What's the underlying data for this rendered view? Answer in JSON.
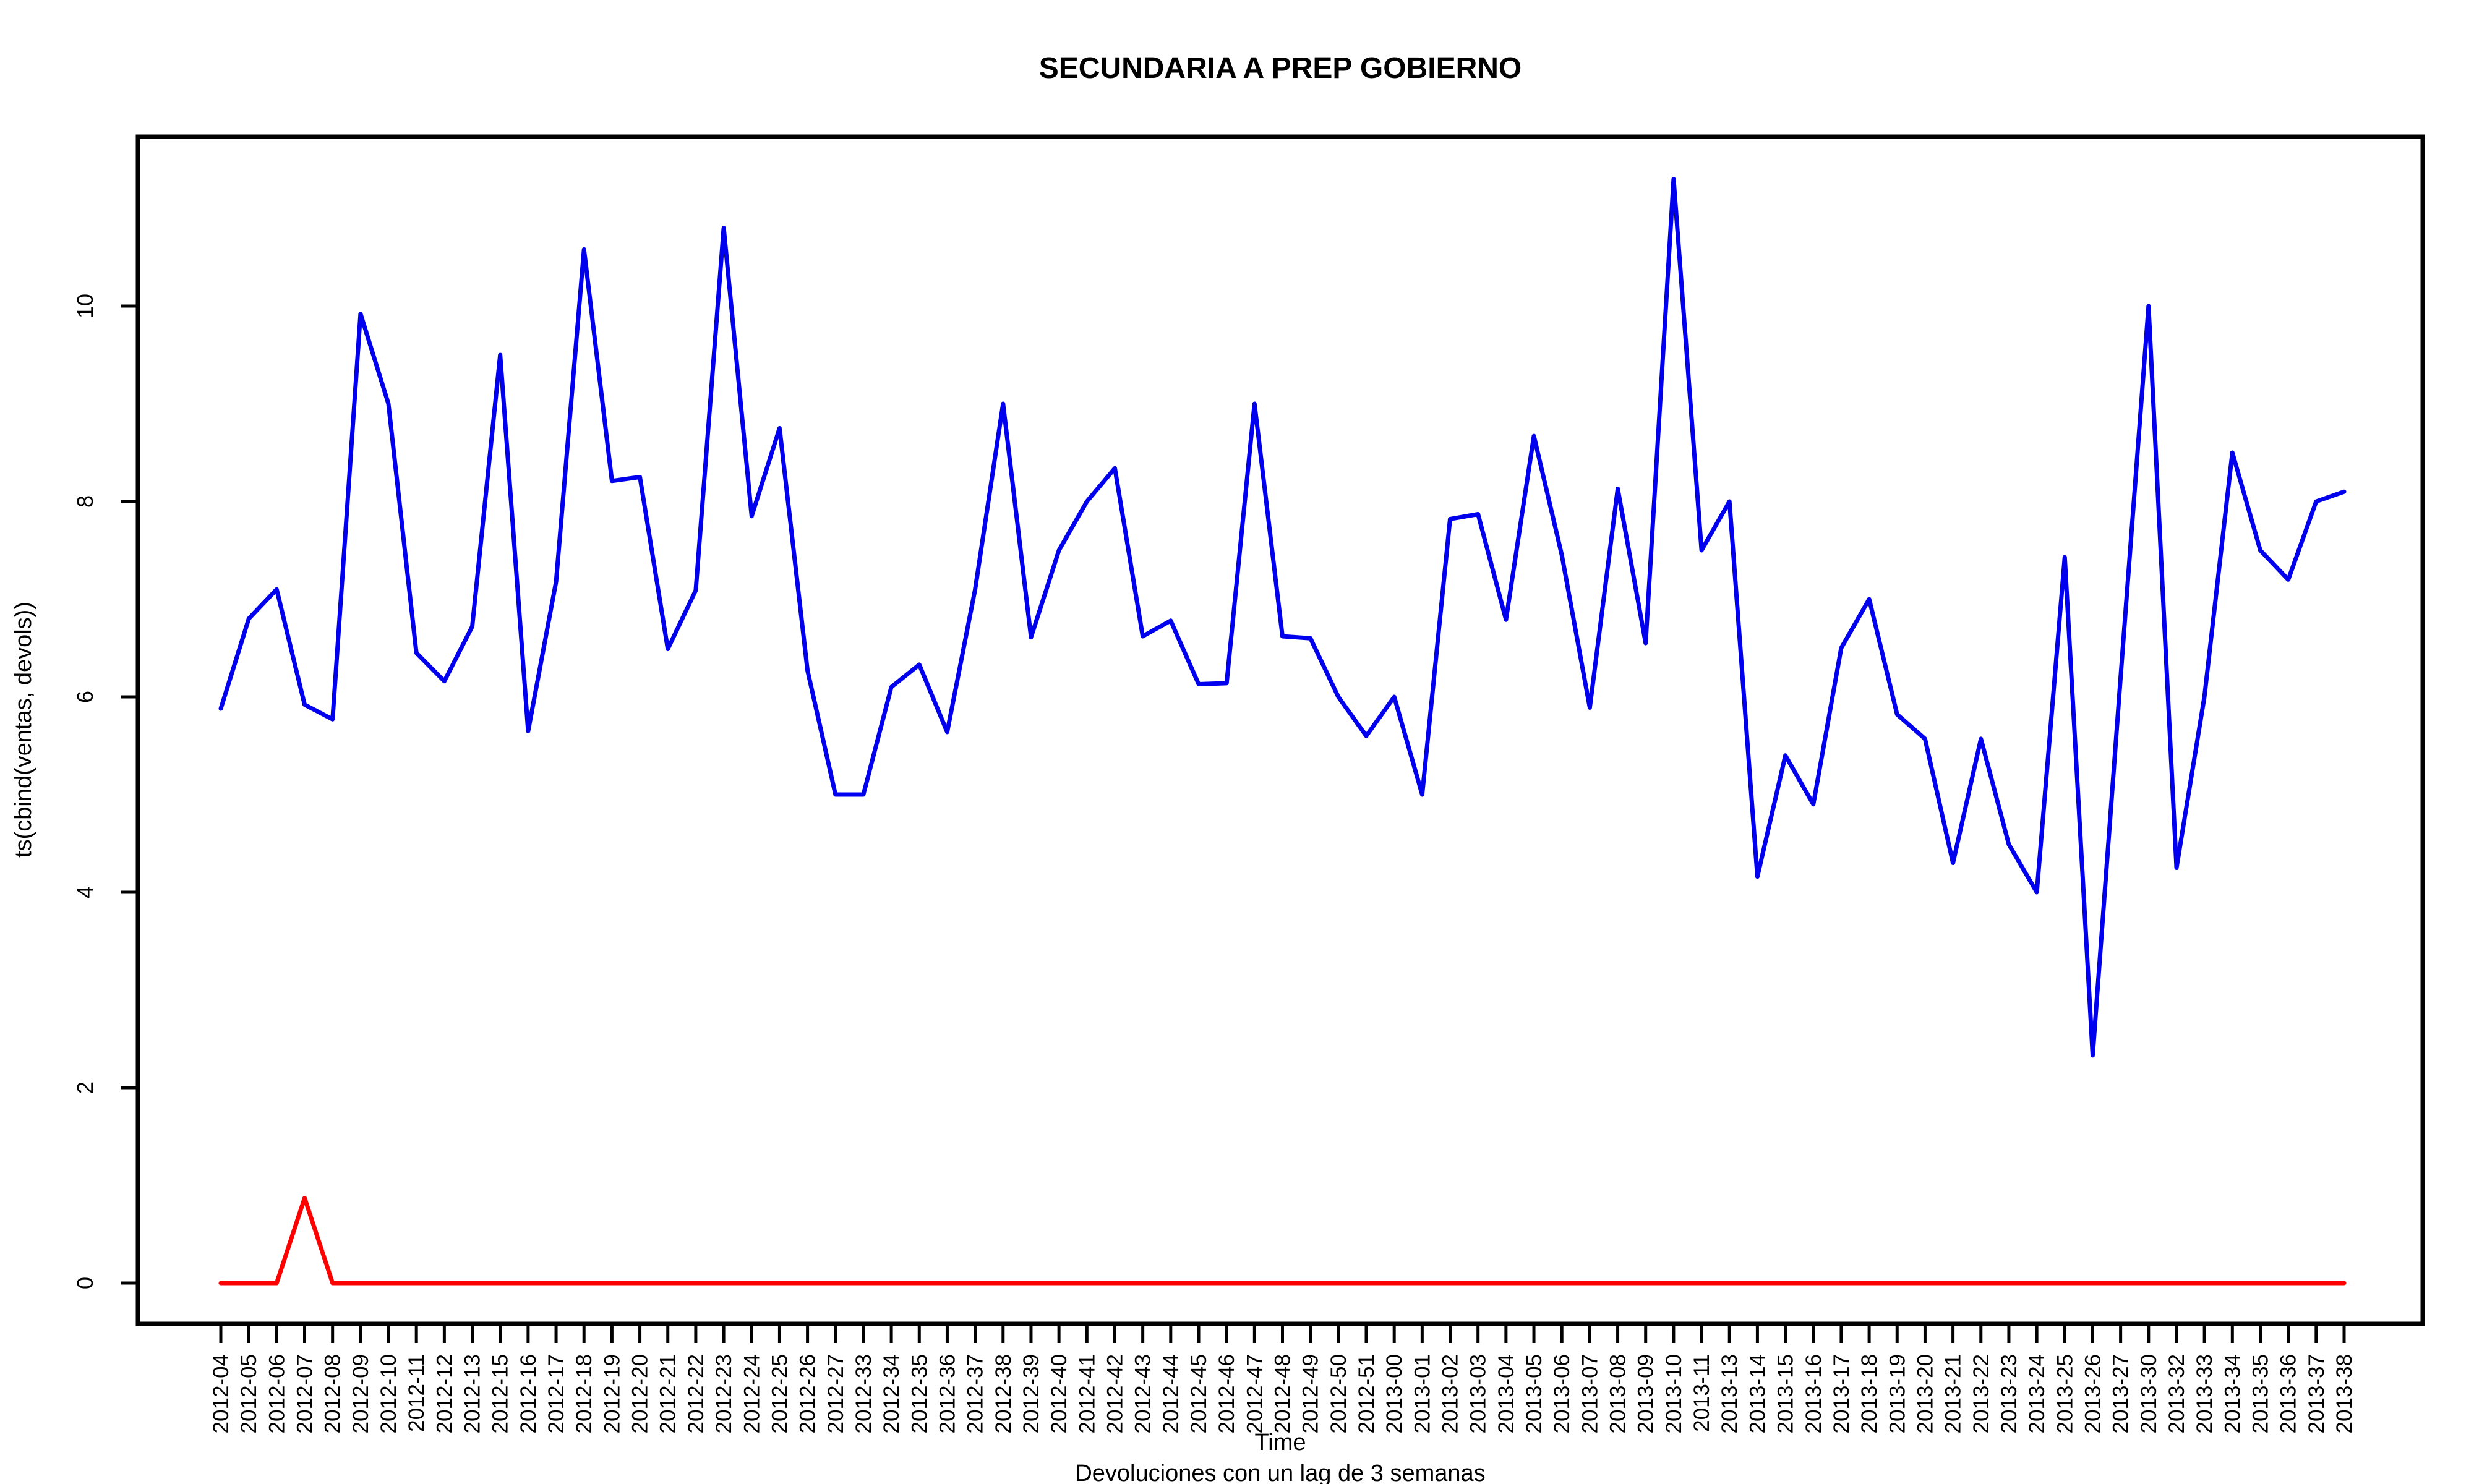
{
  "chart_data": {
    "type": "line",
    "title": "SECUNDARIA A PREP GOBIERNO",
    "xlabel": "Time",
    "subtitle": "Devoluciones con un lag de 3 semanas",
    "ylabel": "ts(cbind(ventas, devols))",
    "ylim": [
      0,
      11.5
    ],
    "yticks": [
      "0",
      "2",
      "4",
      "6",
      "8",
      "10"
    ],
    "grid": false,
    "categories": [
      "2012-04",
      "2012-05",
      "2012-06",
      "2012-07",
      "2012-08",
      "2012-09",
      "2012-10",
      "2012-11",
      "2012-12",
      "2012-13",
      "2012-15",
      "2012-16",
      "2012-17",
      "2012-18",
      "2012-19",
      "2012-20",
      "2012-21",
      "2012-22",
      "2012-23",
      "2012-24",
      "2012-25",
      "2012-26",
      "2012-27",
      "2012-33",
      "2012-34",
      "2012-35",
      "2012-36",
      "2012-37",
      "2012-38",
      "2012-39",
      "2012-40",
      "2012-41",
      "2012-42",
      "2012-43",
      "2012-44",
      "2012-45",
      "2012-46",
      "2012-47",
      "2012-48",
      "2012-49",
      "2012-50",
      "2012-51",
      "2013-00",
      "2013-01",
      "2013-02",
      "2013-03",
      "2013-04",
      "2013-05",
      "2013-06",
      "2013-07",
      "2013-08",
      "2013-09",
      "2013-10",
      "2013-11",
      "2013-13",
      "2013-14",
      "2013-15",
      "2013-16",
      "2013-17",
      "2013-18",
      "2013-19",
      "2013-20",
      "2013-21",
      "2013-22",
      "2013-23",
      "2013-24",
      "2013-25",
      "2013-26",
      "2013-27",
      "2013-30",
      "2013-32",
      "2013-33",
      "2013-34",
      "2013-35",
      "2013-36",
      "2013-37",
      "2013-38"
    ],
    "series": [
      {
        "color": "#0000ee",
        "values": [
          5.88,
          6.8,
          7.1,
          5.92,
          5.77,
          9.92,
          9.0,
          6.45,
          6.16,
          6.72,
          9.5,
          5.65,
          7.18,
          10.58,
          8.21,
          8.25,
          6.49,
          7.09,
          10.8,
          7.85,
          8.75,
          6.27,
          5.0,
          5.0,
          6.1,
          6.33,
          5.64,
          7.1,
          9.0,
          6.61,
          7.5,
          8.0,
          8.34,
          6.62,
          6.78,
          6.13,
          6.14,
          9.0,
          6.62,
          6.6,
          6.0,
          5.6,
          6.0,
          5.0,
          7.82,
          7.87,
          6.79,
          8.67,
          7.45,
          5.89,
          8.13,
          6.55,
          11.3,
          7.5,
          8.0,
          4.16,
          5.4,
          4.9,
          6.5,
          7.0,
          5.82,
          5.57,
          4.3,
          5.57,
          4.49,
          4.0,
          7.43,
          2.33,
          6.2,
          10.0,
          4.25,
          6.0,
          8.5,
          7.5,
          7.2,
          8.0,
          8.1
        ]
      },
      {
        "color": "#ff0000",
        "values": [
          0,
          0,
          0,
          0.87,
          0,
          0,
          0,
          0,
          0,
          0,
          0,
          0,
          0,
          0,
          0,
          0,
          0,
          0,
          0,
          0,
          0,
          0,
          0,
          0,
          0,
          0,
          0,
          0,
          0,
          0,
          0,
          0,
          0,
          0,
          0,
          0,
          0,
          0,
          0,
          0,
          0,
          0,
          0,
          0,
          0,
          0,
          0,
          0,
          0,
          0,
          0,
          0,
          0,
          0,
          0,
          0,
          0,
          0,
          0,
          0,
          0,
          0,
          0,
          0,
          0,
          0,
          0,
          0,
          0,
          0,
          0,
          0,
          0,
          0,
          0,
          0,
          0
        ]
      }
    ]
  }
}
